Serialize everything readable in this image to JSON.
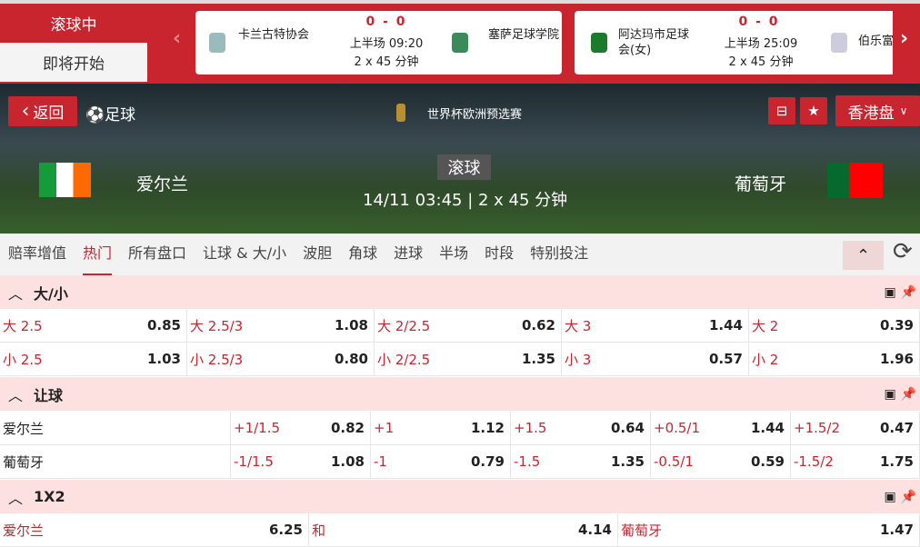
{
  "top": {
    "tabs": [
      "滚球中",
      "即将开始"
    ],
    "cards": [
      {
        "home": "卡兰古特协会",
        "away": "塞萨足球学院",
        "score": "0 - 0",
        "time": "上半场 09:20",
        "format": "2 x 45 分钟"
      },
      {
        "home": "阿达玛市足球会(女)",
        "away": "伯乐富",
        "score": "0 - 0",
        "time": "上半场 25:09",
        "format": "2 x 45 分钟"
      }
    ]
  },
  "header": {
    "back": "返回",
    "sport": "足球",
    "league": "世界杯欧洲预选赛",
    "odds_type": "香港盘",
    "home": "爱尔兰",
    "away": "葡萄牙",
    "status": "滚球",
    "datetime": "14/11 03:45",
    "format": "2 x 45 分钟"
  },
  "tabs": [
    "赔率增值",
    "热门",
    "所有盘口",
    "让球 & 大/小",
    "波胆",
    "角球",
    "进球",
    "半场",
    "时段",
    "特别投注"
  ],
  "ou": {
    "title": "大/小",
    "rows": [
      [
        [
          "大 2.5",
          "0.85"
        ],
        [
          "大 2.5/3",
          "1.08"
        ],
        [
          "大 2/2.5",
          "0.62"
        ],
        [
          "大 3",
          "1.44"
        ],
        [
          "大 2",
          "0.39"
        ]
      ],
      [
        [
          "小 2.5",
          "1.03"
        ],
        [
          "小 2.5/3",
          "0.80"
        ],
        [
          "小 2/2.5",
          "1.35"
        ],
        [
          "小 3",
          "0.57"
        ],
        [
          "小 2",
          "1.96"
        ]
      ]
    ]
  },
  "hdp": {
    "title": "让球",
    "rows": [
      {
        "team": "爱尔兰",
        "cells": [
          [
            "+1/1.5",
            "0.82"
          ],
          [
            "+1",
            "1.12"
          ],
          [
            "+1.5",
            "0.64"
          ],
          [
            "+0.5/1",
            "1.44"
          ],
          [
            "+1.5/2",
            "0.47"
          ]
        ]
      },
      {
        "team": "葡萄牙",
        "cells": [
          [
            "-1/1.5",
            "1.08"
          ],
          [
            "-1",
            "0.79"
          ],
          [
            "-1.5",
            "1.35"
          ],
          [
            "-0.5/1",
            "0.59"
          ],
          [
            "-1.5/2",
            "1.75"
          ]
        ]
      }
    ]
  },
  "x12": {
    "title": "1X2",
    "cells": [
      [
        "爱尔兰",
        "6.25"
      ],
      [
        "和",
        "4.14"
      ],
      [
        "葡萄牙",
        "1.47"
      ]
    ]
  },
  "colors": {
    "accent": "#c8252f",
    "section": "#fde0e0"
  }
}
